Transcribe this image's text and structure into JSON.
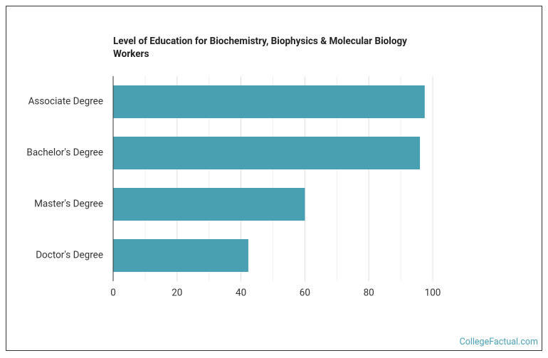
{
  "chart_data": {
    "type": "bar",
    "orientation": "horizontal",
    "title": "Level of Education for Biochemistry, Biophysics & Molecular Biology Workers",
    "categories": [
      "Associate Degree",
      "Bachelor's Degree",
      "Master's Degree",
      "Doctor's Degree"
    ],
    "values": [
      97.5,
      96,
      60,
      42.3
    ],
    "color": "#4aa0b3",
    "xlim": [
      0,
      100
    ],
    "xticks": [
      0,
      20,
      40,
      60,
      80,
      100
    ],
    "minor_xticks": [
      10,
      30,
      50,
      70,
      90
    ],
    "grid": true,
    "source": "CollegeFactual.com"
  }
}
